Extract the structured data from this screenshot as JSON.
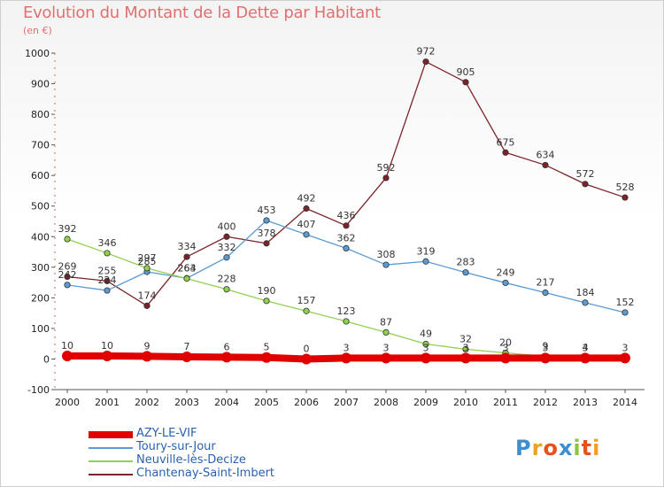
{
  "header": {
    "title": "Evolution du Montant de la Dette par Habitant",
    "subtitle": "(en €)"
  },
  "logo": {
    "text": "Proxiti",
    "letters": [
      "P",
      "r",
      "o",
      "x",
      "i",
      "t",
      "i"
    ]
  },
  "chart_data": {
    "type": "line",
    "x": [
      "2000",
      "2001",
      "2002",
      "2003",
      "2004",
      "2005",
      "2006",
      "2007",
      "2008",
      "2009",
      "2010",
      "2011",
      "2012",
      "2013",
      "2014"
    ],
    "ylim": [
      -100,
      1000
    ],
    "yticks": [
      -100,
      0,
      100,
      200,
      300,
      400,
      500,
      600,
      700,
      800,
      900,
      1000
    ],
    "grid": false,
    "legend_placement": "bottom-left",
    "series": [
      {
        "name": "AZY-LE-VIF",
        "color": "#e00000",
        "values": [
          10,
          10,
          9,
          7,
          6,
          5,
          0,
          3,
          3,
          3,
          3,
          3,
          3,
          3,
          3
        ],
        "labels": [
          "10",
          "10",
          "9",
          "7",
          "6",
          "5",
          "0",
          "3",
          "3",
          "3",
          "3",
          "3",
          "3",
          "3",
          "3"
        ]
      },
      {
        "name": "Toury-sur-Jour",
        "color": "#5b9bd5",
        "values": [
          242,
          224,
          285,
          264,
          332,
          453,
          407,
          362,
          308,
          319,
          283,
          249,
          217,
          184,
          152
        ],
        "labels": [
          "242",
          "224",
          "285",
          "264",
          "332",
          "453",
          "407",
          "362",
          "308",
          "319",
          "283",
          "249",
          "217",
          "184",
          "152"
        ]
      },
      {
        "name": "Neuville-lès-Decize",
        "color": "#92d050",
        "values": [
          392,
          346,
          297,
          263,
          228,
          190,
          157,
          123,
          87,
          49,
          32,
          20,
          9,
          4,
          1
        ],
        "labels": [
          "392",
          "346",
          "297",
          "263",
          "228",
          "190",
          "157",
          "123",
          "87",
          "49",
          "32",
          "20",
          "9",
          "4",
          ""
        ]
      },
      {
        "name": "Chantenay-Saint-Imbert",
        "color": "#7b2328",
        "values": [
          269,
          255,
          174,
          334,
          400,
          378,
          492,
          436,
          592,
          972,
          905,
          675,
          634,
          572,
          528
        ],
        "labels": [
          "269",
          "255",
          "174",
          "334",
          "400",
          "378",
          "492",
          "436",
          "592",
          "972",
          "905",
          "675",
          "634",
          "572",
          "528"
        ]
      }
    ]
  }
}
